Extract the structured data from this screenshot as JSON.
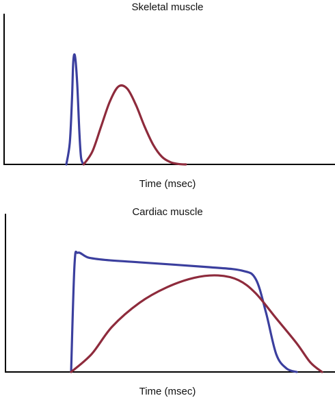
{
  "chart_data": [
    {
      "type": "line",
      "title": "Skeletal muscle",
      "xlabel": "Time (msec)",
      "ylabel": "",
      "series": [
        {
          "color": "#3b3f9e",
          "x": [
            0,
            0.8,
            1.3,
            1.6,
            2.0,
            2.5,
            3.0,
            3.4,
            4.0
          ],
          "y": [
            0,
            20,
            60,
            95,
            100,
            75,
            30,
            6,
            0
          ]
        },
        {
          "color": "#8e2b3c",
          "x": [
            4.0,
            6.0,
            8.0,
            10.0,
            12.0,
            14.0,
            16.0,
            18.0,
            20.0,
            22.0,
            24.0,
            26.0,
            27.5
          ],
          "y": [
            0,
            12,
            35,
            58,
            72,
            70,
            55,
            35,
            18,
            7,
            2,
            0.3,
            0
          ]
        }
      ]
    },
    {
      "type": "line",
      "title": "Cardiac muscle",
      "xlabel": "Time (msec)",
      "ylabel": "",
      "series": [
        {
          "color": "#3b3f9e",
          "x": [
            0,
            0.5,
            1.0,
            2.5,
            5.0,
            10.0,
            20.0,
            25.0,
            27.0,
            28.5,
            30.0,
            31.5,
            33.0
          ],
          "y": [
            0,
            90,
            100,
            96,
            94,
            92,
            88,
            85,
            78,
            50,
            15,
            3,
            0
          ]
        },
        {
          "color": "#8e2b3c",
          "x": [
            0,
            3.0,
            6.0,
            10.0,
            14.0,
            18.0,
            21.5,
            24.5,
            27.0,
            30.0,
            33.0,
            35.0,
            36.7
          ],
          "y": [
            0,
            15,
            38,
            58,
            71,
            79,
            81,
            77,
            66,
            45,
            24,
            8,
            0
          ]
        }
      ]
    }
  ]
}
